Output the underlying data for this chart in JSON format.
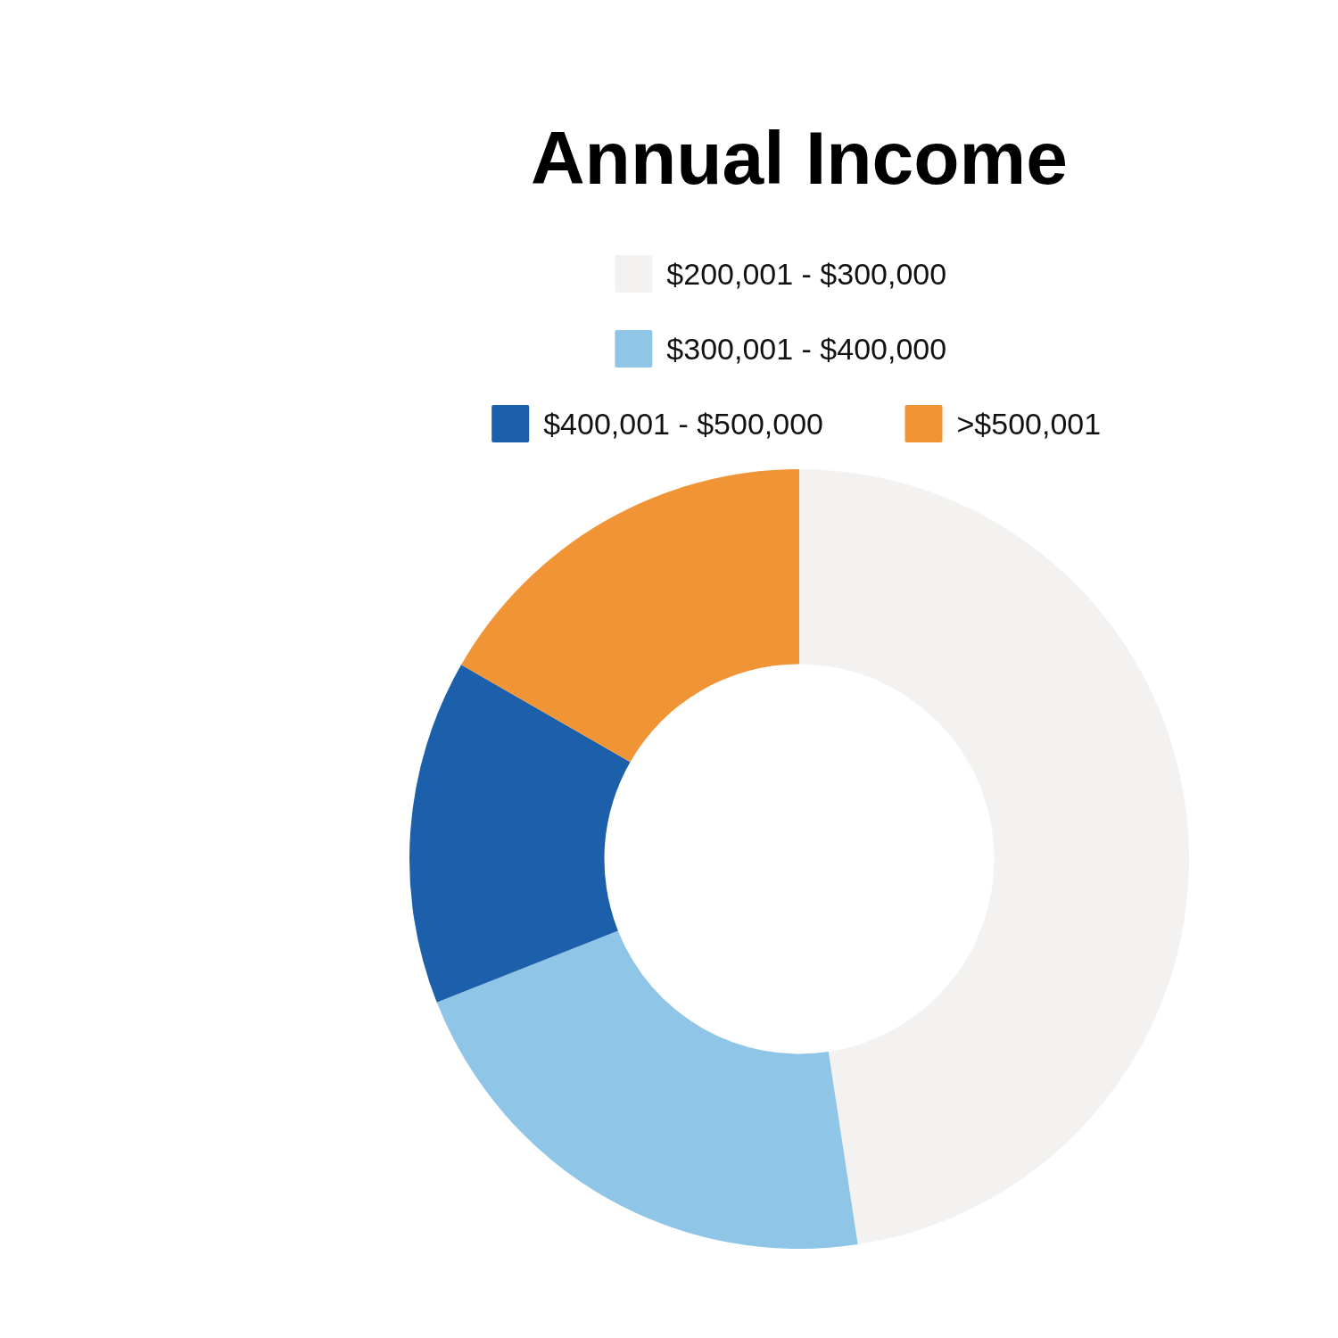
{
  "chart_data": {
    "type": "donut",
    "title": "Annual Income",
    "categories": [
      "$200,001 - $300,000",
      "$300,001 - $400,000",
      "$400,001 - $500,000",
      ">$500,001"
    ],
    "values": [
      47.6,
      21.4,
      14.3,
      16.7
    ],
    "colors": [
      "#f3f2f0",
      "#8fc6e7",
      "#1c5faa",
      "#f09435"
    ],
    "legend": "top"
  }
}
